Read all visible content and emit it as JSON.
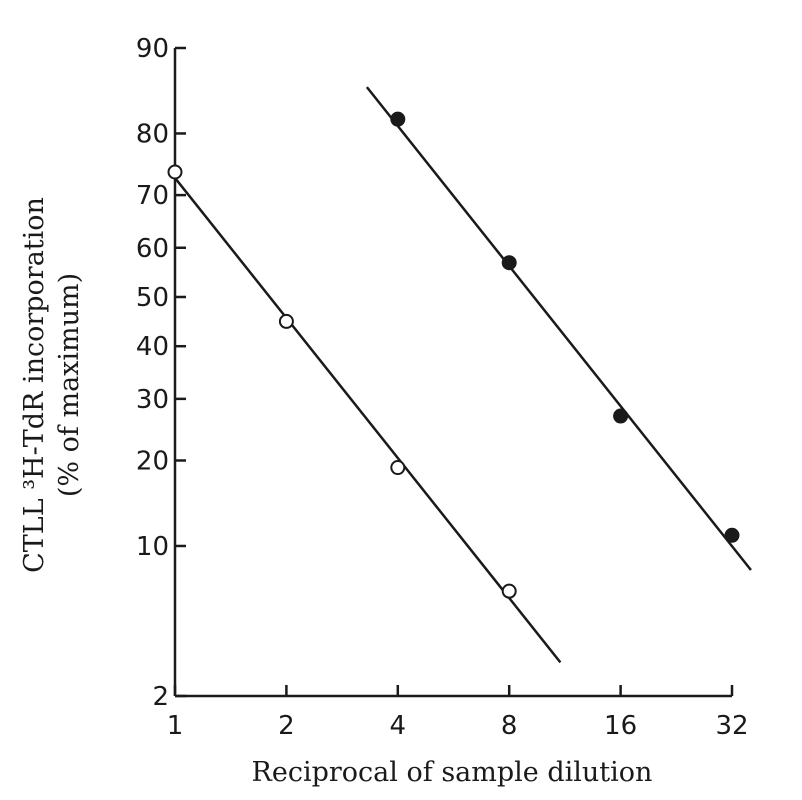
{
  "chart_data": {
    "type": "scatter",
    "title": "",
    "xlabel": "Reciprocal of sample dilution",
    "ylabel_line1": "CTLL ³H-TdR incorporation",
    "ylabel_line2": "(% of maximum)",
    "x_scale": "log2",
    "y_scale": "probit",
    "x_ticks": [
      1,
      2,
      4,
      8,
      16,
      32
    ],
    "x_tick_labels": [
      "1",
      "2",
      "4",
      "8",
      "16",
      "32"
    ],
    "y_ticks": [
      2,
      10,
      20,
      30,
      40,
      50,
      60,
      70,
      80,
      90
    ],
    "y_tick_labels": [
      "2",
      "10",
      "20",
      "30",
      "40",
      "50",
      "60",
      "70",
      "80",
      "90"
    ],
    "xlim": [
      1,
      32
    ],
    "ylim": [
      2,
      90
    ],
    "series": [
      {
        "name": "open circles",
        "marker": "open-circle",
        "points": [
          {
            "x": 1,
            "y": 74
          },
          {
            "x": 2,
            "y": 45
          },
          {
            "x": 4,
            "y": 19
          },
          {
            "x": 8,
            "y": 6.5
          }
        ],
        "fit_line": {
          "from": {
            "x": 1,
            "y": 73
          },
          "to": {
            "x": 11,
            "y": 3
          }
        }
      },
      {
        "name": "filled circles",
        "marker": "filled-circle",
        "points": [
          {
            "x": 4,
            "y": 82
          },
          {
            "x": 8,
            "y": 57
          },
          {
            "x": 16,
            "y": 27
          },
          {
            "x": 32,
            "y": 11
          }
        ],
        "fit_line": {
          "from": {
            "x": 3.3,
            "y": 86
          },
          "to": {
            "x": 36,
            "y": 8
          }
        }
      }
    ]
  }
}
